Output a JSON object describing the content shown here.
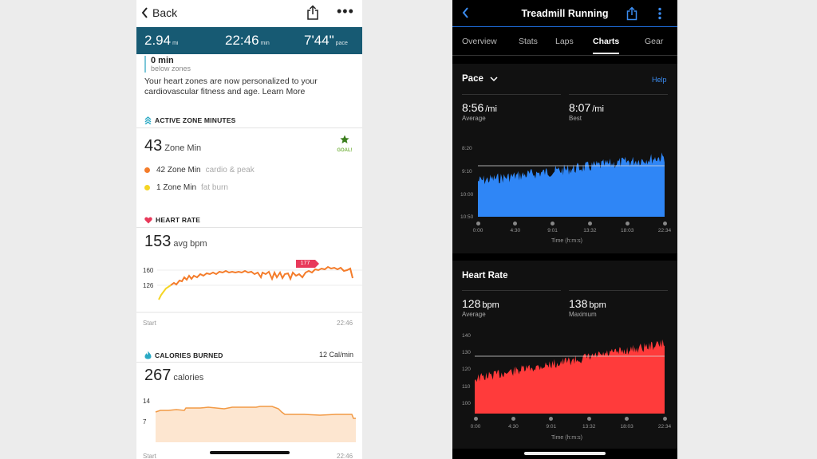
{
  "left": {
    "nav": {
      "back_label": "Back"
    },
    "stats": [
      {
        "value": "2.94",
        "unit": "mi"
      },
      {
        "value": "22:46",
        "unit": "min"
      },
      {
        "value": "7'44\"",
        "unit": "pace"
      }
    ],
    "zone_top": {
      "value": "0 min",
      "sub": "below zones"
    },
    "note": "Your heart zones are now personalized to your cardiovascular fitness and age. Learn More",
    "azm": {
      "title": "ACTIVE ZONE MINUTES",
      "value": "43",
      "unit": "Zone Min",
      "goal_label": "GOAL!",
      "rows": [
        {
          "value": "42 Zone Min",
          "sub": "cardio & peak",
          "color": "#f47c2a"
        },
        {
          "value": "1 Zone Min",
          "sub": "fat burn",
          "color": "#f5d524"
        }
      ]
    },
    "heart_rate": {
      "title": "HEART RATE",
      "value": "153",
      "unit": "avg bpm",
      "y_ticks": [
        "160",
        "126"
      ],
      "peak_label": "177",
      "x_start": "Start",
      "x_end": "22:46"
    },
    "calories": {
      "title": "CALORIES BURNED",
      "rate": "12 Cal/min",
      "value": "267",
      "unit": "calories",
      "y_ticks": [
        "14",
        "7"
      ],
      "x_start": "Start",
      "x_end": "22:46"
    }
  },
  "right": {
    "nav": {
      "title": "Treadmill Running"
    },
    "tabs": [
      "Overview",
      "Stats",
      "Laps",
      "Charts",
      "Gear"
    ],
    "active_tab": "Charts",
    "pace": {
      "title": "Pace",
      "help": "Help",
      "avg_value": "8:56",
      "avg_unit": "/mi",
      "avg_label": "Average",
      "best_value": "8:07",
      "best_unit": "/mi",
      "best_label": "Best",
      "y_ticks": [
        "8:20",
        "9:10",
        "10:00",
        "10:50"
      ],
      "x_ticks": [
        "0:00",
        "4:30",
        "9:01",
        "13:32",
        "18:03",
        "22:34"
      ],
      "x_title": "Time (h:m:s)",
      "color": "#2f86f6"
    },
    "heart_rate": {
      "title": "Heart Rate",
      "avg_value": "128",
      "avg_unit": "bpm",
      "avg_label": "Average",
      "max_value": "138",
      "max_unit": "bpm",
      "max_label": "Maximum",
      "y_ticks": [
        "140",
        "130",
        "120",
        "110",
        "100"
      ],
      "x_ticks": [
        "0:00",
        "4:30",
        "9:01",
        "13:32",
        "18:03",
        "22:34"
      ],
      "x_title": "Time (h:m:s)",
      "color": "#ff3b3b"
    }
  },
  "icons": {
    "back": "chevron-left-icon",
    "share": "share-icon",
    "more": "more-icon",
    "azm": "zone-icon",
    "heart": "heart-icon",
    "flame": "flame-icon",
    "star": "star-icon"
  }
}
